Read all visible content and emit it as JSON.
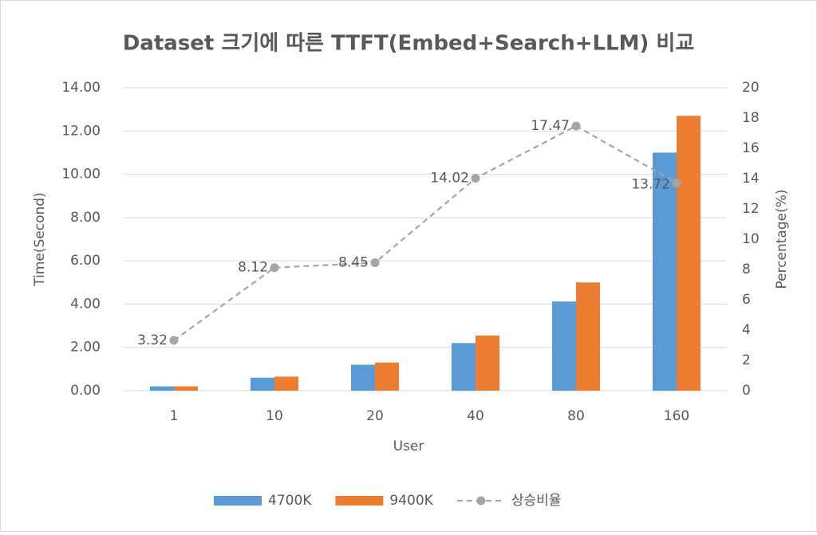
{
  "chart_data": {
    "type": "bar",
    "title": "Dataset 크기에 따른 TTFT(Embed+Search+LLM) 비교",
    "x_label": "User",
    "y_label": "Time(Second)",
    "y2_label": "Percentage(%)",
    "categories": [
      "1",
      "10",
      "20",
      "40",
      "80",
      "160"
    ],
    "series": [
      {
        "name": "4700K",
        "color": "#5b9bd5",
        "values": [
          0.2,
          0.6,
          1.2,
          2.2,
          4.12,
          11.0
        ]
      },
      {
        "name": "9400K",
        "color": "#ed7d31",
        "values": [
          0.2,
          0.65,
          1.3,
          2.55,
          5.0,
          12.7
        ]
      },
      {
        "name": "상승비율",
        "color": "#a5a5a5",
        "type": "line",
        "dashed": true,
        "axis": "y2",
        "values": [
          3.32,
          8.12,
          8.45,
          14.02,
          17.47,
          13.72
        ]
      }
    ],
    "ylim": [
      0,
      14
    ],
    "yticks": [
      {
        "value": 0,
        "label": "0.00"
      },
      {
        "value": 2,
        "label": "2.00"
      },
      {
        "value": 4,
        "label": "4.00"
      },
      {
        "value": 6,
        "label": "6.00"
      },
      {
        "value": 8,
        "label": "8.00"
      },
      {
        "value": 10,
        "label": "10.00"
      },
      {
        "value": 12,
        "label": "12.00"
      },
      {
        "value": 14,
        "label": "14.00"
      }
    ],
    "y2lim": [
      0,
      20
    ],
    "y2ticks": [
      0,
      2,
      4,
      6,
      8,
      10,
      12,
      14,
      16,
      18,
      20
    ],
    "grid": true,
    "legend": "bottom"
  }
}
